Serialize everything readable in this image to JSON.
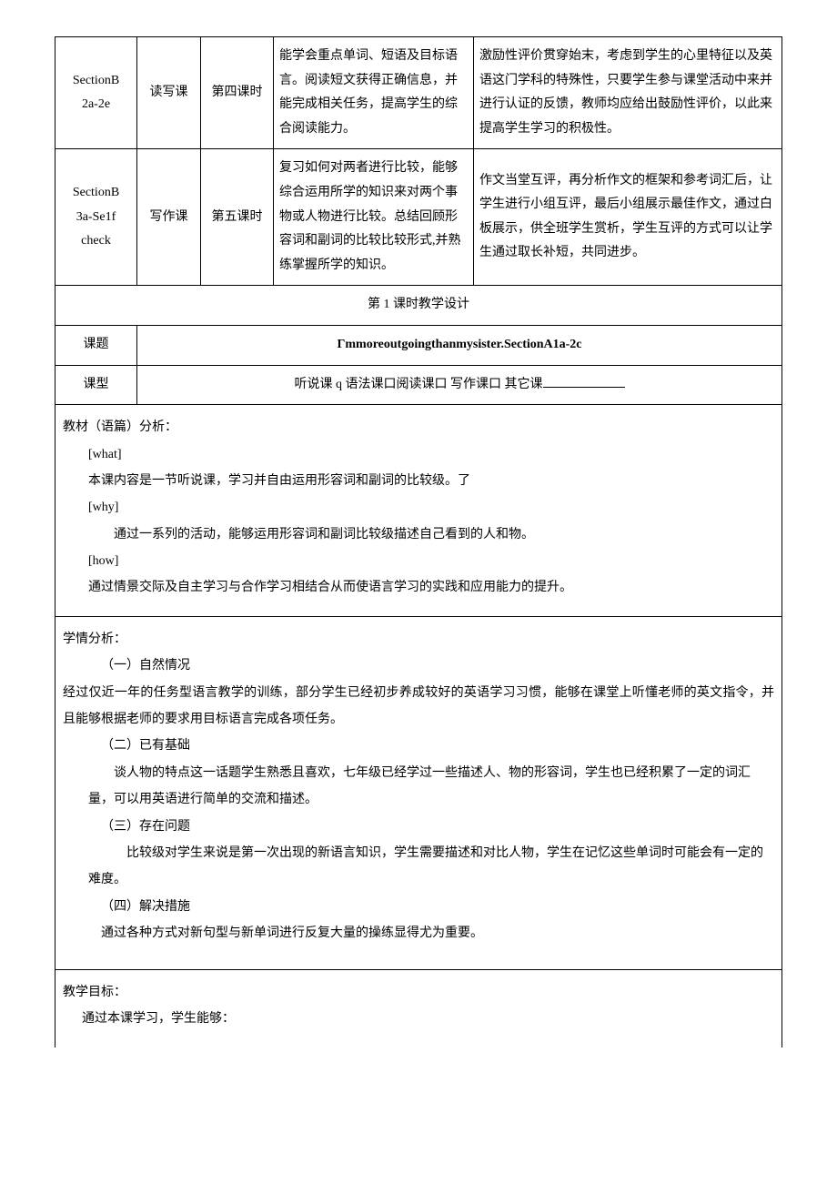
{
  "rows": [
    {
      "section": "SectionB\n2a-2e",
      "type": "读写课",
      "period": "第四课时",
      "goal": "能学会重点单词、短语及目标语言。阅读短文获得正确信息，并能完成相关任务，提高学生的综合阅读能力。",
      "note": "激励性评价贯穿始末，考虑到学生的心里特征以及英语这门学科的特殊性，只要学生参与课堂活动中来并进行认证的反馈，教师均应给出鼓励性评价，以此来提高学生学习的积极性。"
    },
    {
      "section": "SectionB\n3a-Se1f\ncheck",
      "type": "写作课",
      "period": "第五课时",
      "goal": "复习如何对两者进行比较，能够综合运用所学的知识来对两个事物或人物进行比较。总结回顾形容词和副词的比较比较形式,并熟练掌握所学的知识。",
      "note": "作文当堂互评，再分析作文的框架和参考词汇后，让学生进行小组互评，最后小组展示最佳作文，通过白板展示，供全班学生赏析，学生互评的方式可以让学生通过取长补短，共同进步。"
    }
  ],
  "design_title": "第 1 课时教学设计",
  "topic_label": "课题",
  "topic_value": "Γmmoreoutgoingthanmysister.SectionA1a-2c",
  "type_label": "课型",
  "type_options": "听说课 q 语法课口阅读课口          写作课口     其它课",
  "analysis1": {
    "title": "教材（语篇）分析：",
    "what_label": "[what]",
    "what_text": "本课内容是一节听说课，学习并自由运用形容词和副词的比较级。了",
    "why_label": "[why]",
    "why_text": "通过一系列的活动，能够运用形容词和副词比较级描述自己看到的人和物。",
    "how_label": "[how]",
    "how_text": "通过情景交际及自主学习与合作学习相结合从而使语言学习的实践和应用能力的提升。"
  },
  "analysis2": {
    "title": "学情分析：",
    "s1_label": "（一）自然情况",
    "s1_text": "经过仅近一年的任务型语言教学的训练，部分学生已经初步养成较好的英语学习习惯，能够在课堂上听懂老师的英文指令，并且能够根据老师的要求用目标语言完成各项任务。",
    "s2_label": "（二）已有基础",
    "s2_text": "谈人物的特点这一话题学生熟悉且喜欢，七年级已经学过一些描述人、物的形容词，学生也已经积累了一定的词汇量，可以用英语进行简单的交流和描述。",
    "s3_label": "（三）存在问题",
    "s3_text": "比较级对学生来说是第一次出现的新语言知识，学生需要描述和对比人物，学生在记忆这些单词时可能会有一定的难度。",
    "s4_label": "（四）解决措施",
    "s4_text": "通过各种方式对新句型与新单词进行反复大量的操练显得尤为重要。"
  },
  "goals": {
    "title": "教学目标：",
    "intro": "通过本课学习，学生能够："
  }
}
